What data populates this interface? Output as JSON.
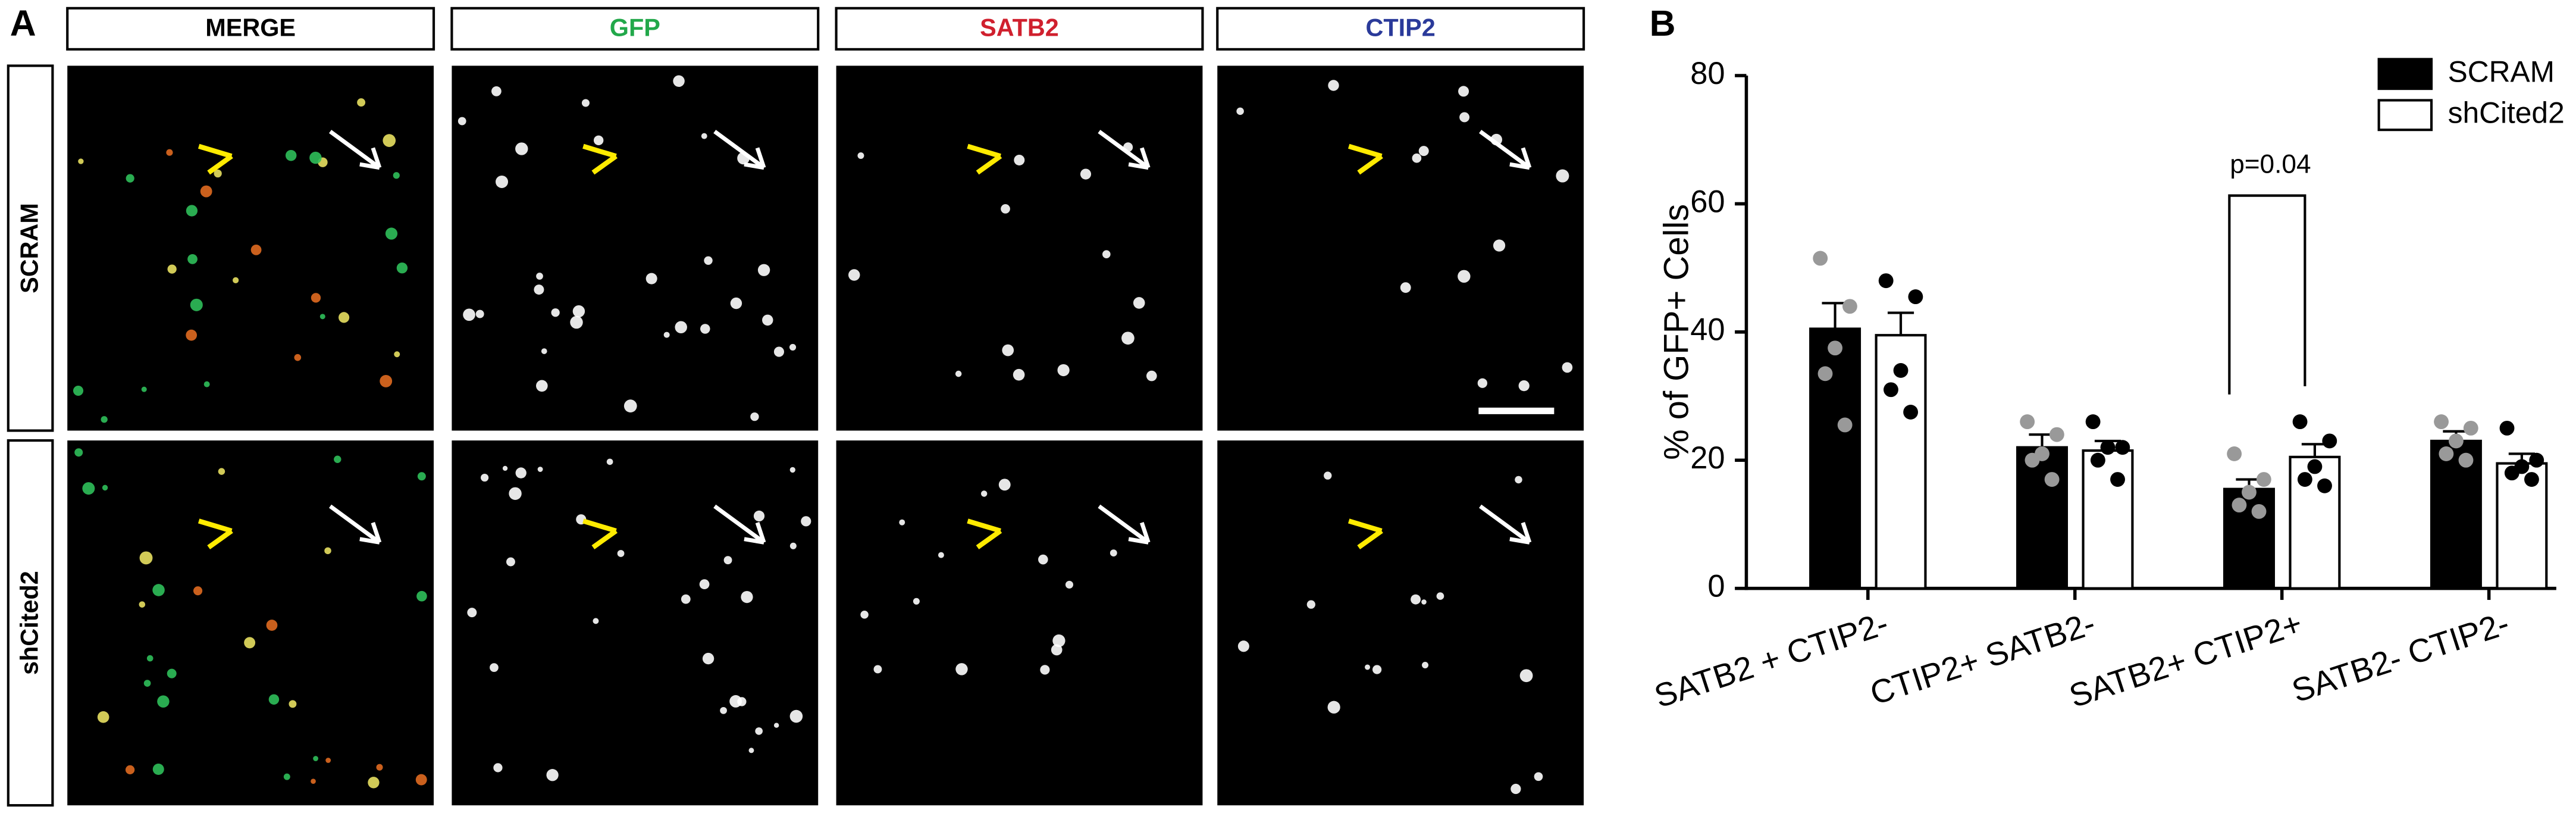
{
  "panel_a": {
    "label": "A",
    "columns": [
      "MERGE",
      "GFP",
      "SATB2",
      "CTIP2"
    ],
    "column_colors": [
      "#000000",
      "#22a84a",
      "#d0202e",
      "#2a3a9a"
    ],
    "rows": [
      "SCRAM",
      "shCited2"
    ]
  },
  "chart_data": {
    "type": "bar",
    "panel_label": "B",
    "y_label": "% of GFP+ Cells",
    "categories": [
      "SATB2 + CTIP2-",
      "CTIP2+ SATB2-",
      "SATB2+ CTIP2+",
      "SATB2- CTIP2-"
    ],
    "series": [
      {
        "name": "SCRAM",
        "color": "#000000",
        "point_color": "#999999",
        "values": [
          40.5,
          22,
          15.5,
          23
        ],
        "errors": [
          4,
          2,
          1.5,
          1.5
        ],
        "points": [
          [
            51.5,
            44,
            37.5,
            33.5,
            25.5
          ],
          [
            26,
            24,
            21,
            20,
            17
          ],
          [
            21,
            17,
            15,
            13,
            12
          ],
          [
            26,
            25,
            23,
            21,
            20
          ]
        ]
      },
      {
        "name": "shCited2",
        "color": "#ffffff",
        "point_color": "#000000",
        "values": [
          39.5,
          21.5,
          20.5,
          19.5
        ],
        "errors": [
          3.5,
          1.5,
          2,
          1.5
        ],
        "points": [
          [
            48,
            45.5,
            34,
            31,
            27.5
          ],
          [
            26,
            22,
            22,
            20,
            17
          ],
          [
            26,
            23,
            19,
            17,
            16
          ],
          [
            25,
            20,
            19,
            18,
            17
          ]
        ]
      }
    ],
    "annotation": "p=0.04",
    "ylim": [
      0,
      80
    ],
    "yticks": [
      0,
      20,
      40,
      60,
      80
    ],
    "legend": "top-right"
  }
}
